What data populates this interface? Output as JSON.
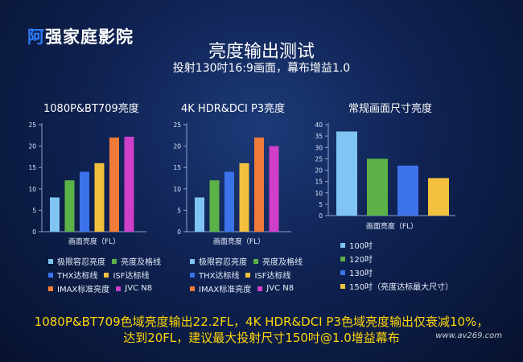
{
  "header": {
    "logo_part1": "阿",
    "logo_part2": "强家庭影院",
    "title": "亮度输出测试",
    "subtitle": "投射130吋16:9画面，幕布增益1.0"
  },
  "colors": {
    "sky": "#7fc4f2",
    "green": "#5cb247",
    "blue": "#3c73ea",
    "yellow": "#f2c03d",
    "orange": "#f07b38",
    "magenta": "#cf3fc9"
  },
  "chart_data": [
    {
      "type": "bar",
      "title": "1080P&BT709亮度",
      "xlabel": "画面亮度（FL）",
      "ylim": [
        0,
        25
      ],
      "yticks": [
        0,
        5,
        10,
        15,
        20,
        25
      ],
      "categories": [
        "极限容忍亮度",
        "亮度及格线",
        "THX达标线",
        "ISF达标线",
        "IMAX标准亮度",
        "JVC N8"
      ],
      "values": [
        8,
        12,
        14,
        16,
        22,
        22.2
      ],
      "colors": [
        "#7fc4f2",
        "#5cb247",
        "#3c73ea",
        "#f2c03d",
        "#f07b38",
        "#cf3fc9"
      ]
    },
    {
      "type": "bar",
      "title": "4K HDR&DCI P3亮度",
      "xlabel": "画面亮度（FL）",
      "ylim": [
        0,
        25
      ],
      "yticks": [
        0,
        5,
        10,
        15,
        20,
        25
      ],
      "categories": [
        "极限容忍亮度",
        "亮度及格线",
        "THX达标线",
        "ISF达标线",
        "IMAX标准亮度",
        "JVC N8"
      ],
      "values": [
        8,
        12,
        14,
        16,
        22,
        20
      ],
      "colors": [
        "#7fc4f2",
        "#5cb247",
        "#3c73ea",
        "#f2c03d",
        "#f07b38",
        "#cf3fc9"
      ]
    },
    {
      "type": "bar",
      "title": "常规画面尺寸亮度",
      "xlabel": "画面亮度（FL）",
      "ylim": [
        0,
        40
      ],
      "yticks": [
        0,
        5,
        10,
        15,
        20,
        25,
        30,
        35,
        40
      ],
      "categories": [
        "100吋",
        "120吋",
        "130吋",
        "150吋（亮度达标最大尺寸）"
      ],
      "values": [
        37,
        25,
        22,
        16.5
      ],
      "colors": [
        "#7fc4f2",
        "#5cb247",
        "#3c73ea",
        "#f2c03d"
      ]
    }
  ],
  "caption": {
    "line1": "1080P&BT709色域亮度输出22.2FL，4K HDR&DCI P3色域亮度输出仅衰减10%，",
    "line2": "达到20FL，建议最大投射尺寸150吋@1.0增益幕布"
  },
  "watermark": "www.av269.com"
}
